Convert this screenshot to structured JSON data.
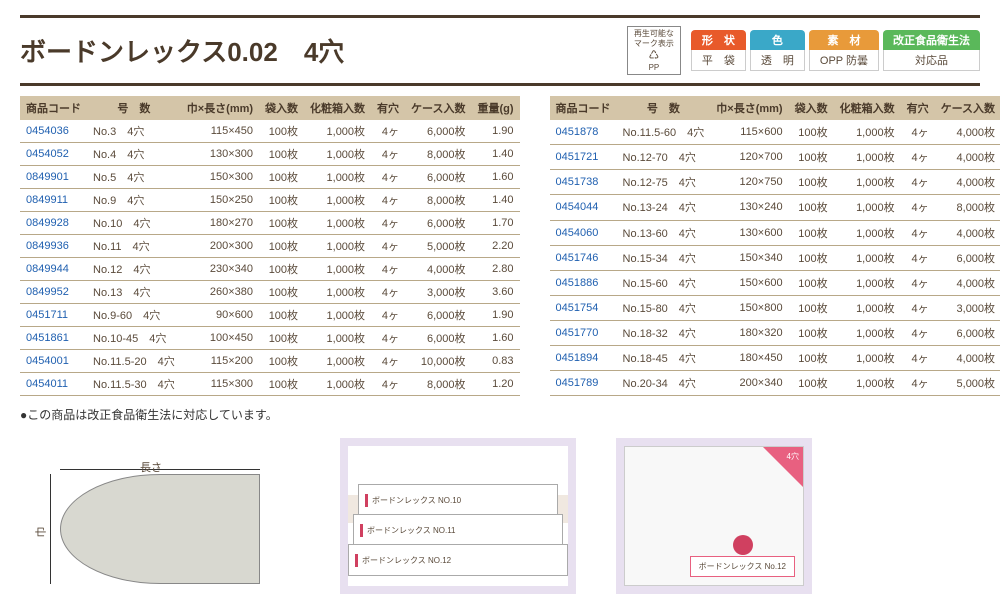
{
  "title": "ボードンレックス0.02　4穴",
  "recycle_mark": {
    "line1": "再生可能な",
    "line2": "マーク表示",
    "line3": "PP"
  },
  "badges": [
    {
      "top": "形　状",
      "bottom": "平　袋",
      "color": "#e85a2a"
    },
    {
      "top": "色",
      "bottom": "透　明",
      "color": "#3aa8c8"
    },
    {
      "top": "素　材",
      "bottom": "OPP 防曇",
      "color": "#e89a3a"
    },
    {
      "top": "改正食品衛生法",
      "bottom": "対応品",
      "color": "#5ab85a"
    }
  ],
  "table_headers": [
    "商品コード",
    "号　数",
    "巾×長さ(mm)",
    "袋入数",
    "化粧箱入数",
    "有穴",
    "ケース入数",
    "重量(g)"
  ],
  "table_left": [
    [
      "0454036",
      "No.3　4穴",
      "115×450",
      "100枚",
      "1,000枚",
      "4ヶ",
      "6,000枚",
      "1.90"
    ],
    [
      "0454052",
      "No.4　4穴",
      "130×300",
      "100枚",
      "1,000枚",
      "4ヶ",
      "8,000枚",
      "1.40"
    ],
    [
      "0849901",
      "No.5　4穴",
      "150×300",
      "100枚",
      "1,000枚",
      "4ヶ",
      "6,000枚",
      "1.60"
    ],
    [
      "0849911",
      "No.9　4穴",
      "150×250",
      "100枚",
      "1,000枚",
      "4ヶ",
      "8,000枚",
      "1.40"
    ],
    [
      "0849928",
      "No.10　4穴",
      "180×270",
      "100枚",
      "1,000枚",
      "4ヶ",
      "6,000枚",
      "1.70"
    ],
    [
      "0849936",
      "No.11　4穴",
      "200×300",
      "100枚",
      "1,000枚",
      "4ヶ",
      "5,000枚",
      "2.20"
    ],
    [
      "0849944",
      "No.12　4穴",
      "230×340",
      "100枚",
      "1,000枚",
      "4ヶ",
      "4,000枚",
      "2.80"
    ],
    [
      "0849952",
      "No.13　4穴",
      "260×380",
      "100枚",
      "1,000枚",
      "4ヶ",
      "3,000枚",
      "3.60"
    ],
    [
      "0451711",
      "No.9-60　4穴",
      "90×600",
      "100枚",
      "1,000枚",
      "4ヶ",
      "6,000枚",
      "1.90"
    ],
    [
      "0451861",
      "No.10-45　4穴",
      "100×450",
      "100枚",
      "1,000枚",
      "4ヶ",
      "6,000枚",
      "1.60"
    ],
    [
      "0454001",
      "No.11.5-20　4穴",
      "115×200",
      "100枚",
      "1,000枚",
      "4ヶ",
      "10,000枚",
      "0.83"
    ],
    [
      "0454011",
      "No.11.5-30　4穴",
      "115×300",
      "100枚",
      "1,000枚",
      "4ヶ",
      "8,000枚",
      "1.20"
    ]
  ],
  "table_right": [
    [
      "0451878",
      "No.11.5-60　4穴",
      "115×600",
      "100枚",
      "1,000枚",
      "4ヶ",
      "4,000枚",
      "2.50"
    ],
    [
      "0451721",
      "No.12-70　4穴",
      "120×700",
      "100枚",
      "1,000枚",
      "4ヶ",
      "4,000枚",
      "3.00"
    ],
    [
      "0451738",
      "No.12-75　4穴",
      "120×750",
      "100枚",
      "1,000枚",
      "4ヶ",
      "4,000枚",
      "3.20"
    ],
    [
      "0454044",
      "No.13-24　4穴",
      "130×240",
      "100枚",
      "1,000枚",
      "4ヶ",
      "8,000枚",
      "1.10"
    ],
    [
      "0454060",
      "No.13-60　4穴",
      "130×600",
      "100枚",
      "1,000枚",
      "4ヶ",
      "4,000枚",
      "2.80"
    ],
    [
      "0451746",
      "No.15-34　4穴",
      "150×340",
      "100枚",
      "1,000枚",
      "4ヶ",
      "6,000枚",
      "1.80"
    ],
    [
      "0451886",
      "No.15-60　4穴",
      "150×600",
      "100枚",
      "1,000枚",
      "4ヶ",
      "4,000枚",
      "3.20"
    ],
    [
      "0451754",
      "No.15-80　4穴",
      "150×800",
      "100枚",
      "1,000枚",
      "4ヶ",
      "3,000枚",
      "4.30"
    ],
    [
      "0451770",
      "No.18-32　4穴",
      "180×320",
      "100枚",
      "1,000枚",
      "4ヶ",
      "6,000枚",
      "2.10"
    ],
    [
      "0451894",
      "No.18-45　4穴",
      "180×450",
      "100枚",
      "1,000枚",
      "4ヶ",
      "4,000枚",
      "2.90"
    ],
    [
      "0451789",
      "No.20-34　4穴",
      "200×340",
      "100枚",
      "1,000枚",
      "4ヶ",
      "5,000枚",
      "2.40"
    ]
  ],
  "note": "●この商品は改正食品衛生法に対応しています。",
  "diagram": {
    "width_label": "巾",
    "length_label": "長さ"
  },
  "box_labels": [
    "ボードンレックス NO.10",
    "ボードンレックス NO.11",
    "ボードンレックス NO.12"
  ],
  "pkg_label": "ボードンレックス No.12",
  "pkg_corner_text": "4穴"
}
